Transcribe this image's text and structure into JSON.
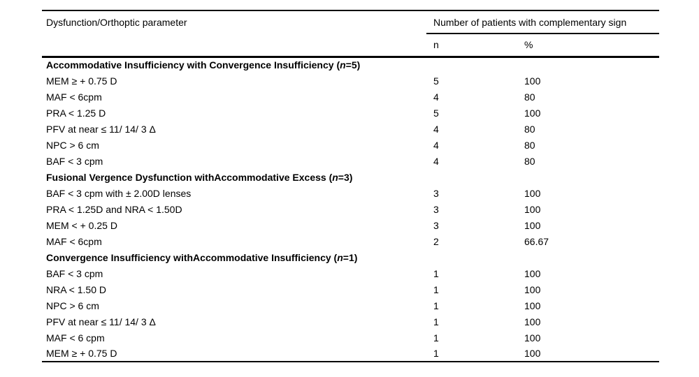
{
  "colors": {
    "background": "#ffffff",
    "text": "#000000",
    "rule": "#000000"
  },
  "table": {
    "header": {
      "param_col": "Dysfunction/Orthoptic parameter",
      "group_col": "Number of patients with complementary sign",
      "sub_n": "n",
      "sub_pct": "%"
    },
    "rows": [
      {
        "type": "section",
        "prefix": "Accommodative Insufficiency with Convergence Insufficiency (",
        "italic": "n",
        "suffix": "=5)"
      },
      {
        "type": "data",
        "param": "MEM ≥ + 0.75 D",
        "n": "5",
        "pct": "100"
      },
      {
        "type": "data",
        "param": "MAF < 6cpm",
        "n": "4",
        "pct": "80"
      },
      {
        "type": "data",
        "param": "PRA < 1.25 D",
        "n": "5",
        "pct": "100"
      },
      {
        "type": "data",
        "param": "PFV at near ≤ 11/ 14/ 3 Δ",
        "n": "4",
        "pct": "80"
      },
      {
        "type": "data",
        "param": "NPC > 6 cm",
        "n": "4",
        "pct": "80"
      },
      {
        "type": "data",
        "param": "BAF < 3 cpm",
        "n": "4",
        "pct": "80"
      },
      {
        "type": "section",
        "prefix": "Fusional Vergence Dysfunction withAccommodative Excess (",
        "italic": "n",
        "suffix": "=3)"
      },
      {
        "type": "data",
        "param": "BAF < 3 cpm with ± 2.00D lenses",
        "n": "3",
        "pct": "100"
      },
      {
        "type": "data",
        "param": "PRA < 1.25D and NRA < 1.50D",
        "n": "3",
        "pct": "100"
      },
      {
        "type": "data",
        "param": "MEM < + 0.25 D",
        "n": "3",
        "pct": "100"
      },
      {
        "type": "data",
        "param": "MAF < 6cpm",
        "n": "2",
        "pct": "66.67"
      },
      {
        "type": "section",
        "prefix": "Convergence Insufficiency withAccommodative Insufficiency (",
        "italic": "n",
        "suffix": "=1)"
      },
      {
        "type": "data",
        "param": "BAF < 3 cpm",
        "n": "1",
        "pct": "100"
      },
      {
        "type": "data",
        "param": "NRA < 1.50 D",
        "n": "1",
        "pct": "100"
      },
      {
        "type": "data",
        "param": "NPC > 6 cm",
        "n": "1",
        "pct": "100"
      },
      {
        "type": "data",
        "param": "PFV at near ≤ 11/ 14/ 3 Δ",
        "n": "1",
        "pct": "100"
      },
      {
        "type": "data",
        "param": "MAF < 6 cpm",
        "n": "1",
        "pct": "100"
      },
      {
        "type": "data",
        "param": "MEM ≥ + 0.75 D",
        "n": "1",
        "pct": "100"
      }
    ]
  },
  "chart_data": {
    "type": "table",
    "title": "Number of patients with complementary sign per dysfunction/orthoptic parameter",
    "columns": [
      "Dysfunction/Orthoptic parameter",
      "n",
      "%"
    ],
    "sections": [
      {
        "section": "Accommodative Insufficiency with Convergence Insufficiency (n=5)",
        "rows": [
          {
            "parameter": "MEM ≥ + 0.75 D",
            "n": 5,
            "pct": 100
          },
          {
            "parameter": "MAF < 6cpm",
            "n": 4,
            "pct": 80
          },
          {
            "parameter": "PRA < 1.25 D",
            "n": 5,
            "pct": 100
          },
          {
            "parameter": "PFV at near ≤ 11/ 14/ 3 Δ",
            "n": 4,
            "pct": 80
          },
          {
            "parameter": "NPC > 6 cm",
            "n": 4,
            "pct": 80
          },
          {
            "parameter": "BAF < 3 cpm",
            "n": 4,
            "pct": 80
          }
        ]
      },
      {
        "section": "Fusional Vergence Dysfunction withAccommodative Excess (n=3)",
        "rows": [
          {
            "parameter": "BAF < 3 cpm with ± 2.00D lenses",
            "n": 3,
            "pct": 100
          },
          {
            "parameter": "PRA < 1.25D and NRA < 1.50D",
            "n": 3,
            "pct": 100
          },
          {
            "parameter": "MEM < + 0.25 D",
            "n": 3,
            "pct": 100
          },
          {
            "parameter": "MAF < 6cpm",
            "n": 2,
            "pct": 66.67
          }
        ]
      },
      {
        "section": "Convergence Insufficiency withAccommodative Insufficiency (n=1)",
        "rows": [
          {
            "parameter": "BAF < 3 cpm",
            "n": 1,
            "pct": 100
          },
          {
            "parameter": "NRA < 1.50 D",
            "n": 1,
            "pct": 100
          },
          {
            "parameter": "NPC > 6 cm",
            "n": 1,
            "pct": 100
          },
          {
            "parameter": "PFV at near ≤ 11/ 14/ 3 Δ",
            "n": 1,
            "pct": 100
          },
          {
            "parameter": "MAF < 6 cpm",
            "n": 1,
            "pct": 100
          },
          {
            "parameter": "MEM ≥ + 0.75 D",
            "n": 1,
            "pct": 100
          }
        ]
      }
    ]
  }
}
